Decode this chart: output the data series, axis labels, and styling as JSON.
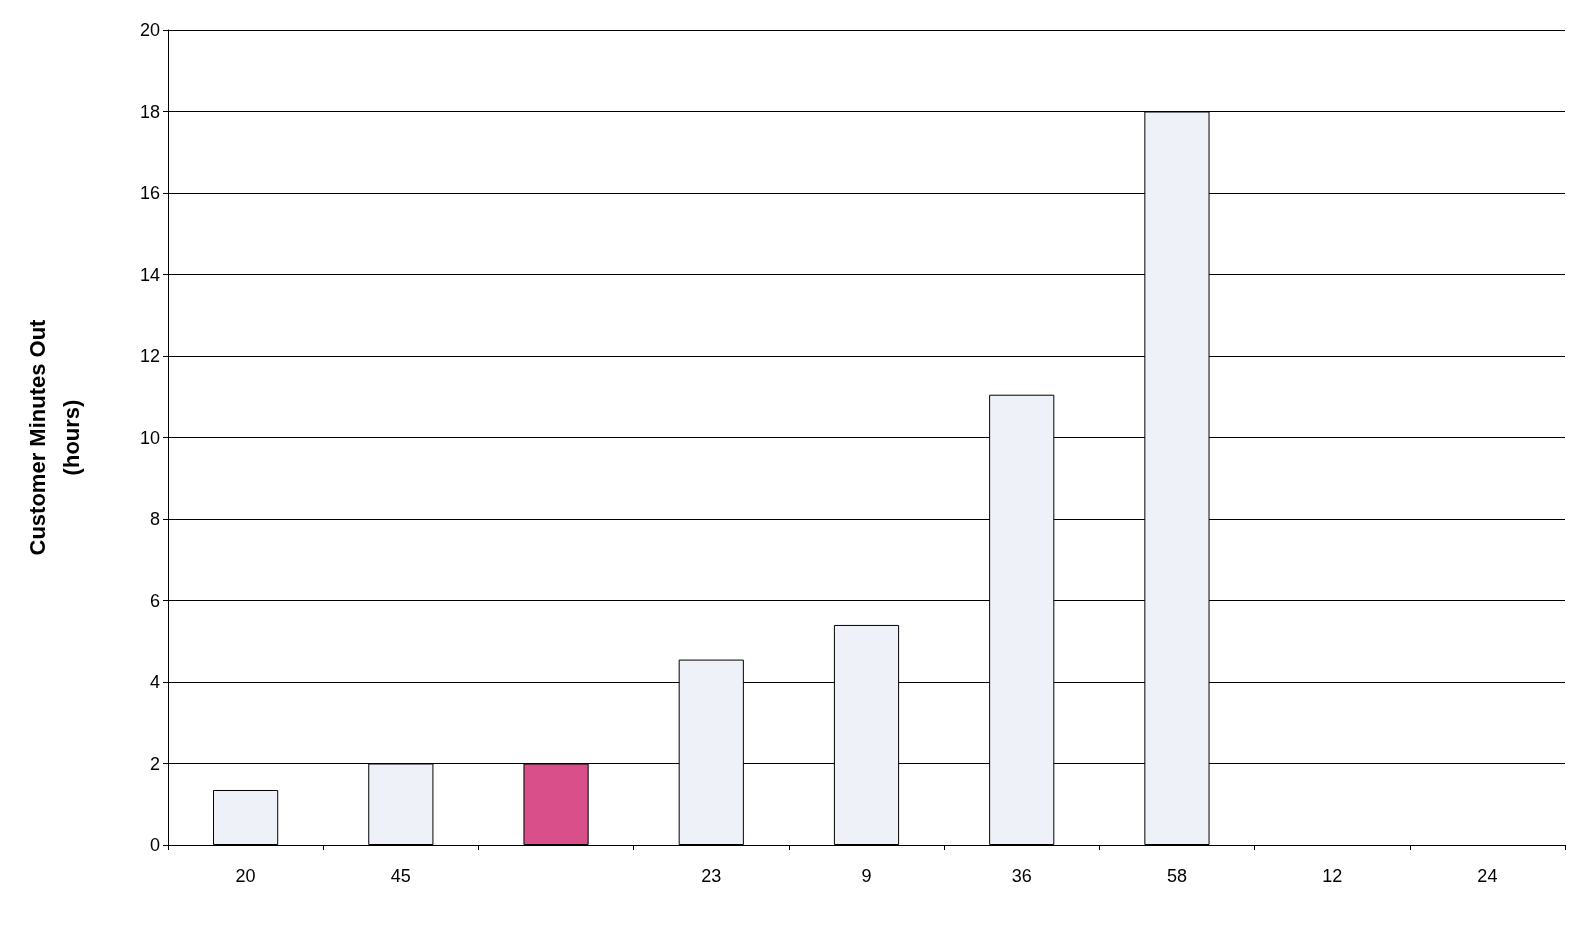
{
  "chart_data": {
    "type": "bar",
    "ylabel": "Customer Minutes Out\n(hours)",
    "categories": [
      "20",
      "45",
      null,
      "23",
      "9",
      "36",
      "58",
      "12",
      "24"
    ],
    "values": [
      1.35,
      2.0,
      2.0,
      4.55,
      5.4,
      11.05,
      18.0,
      0,
      0
    ],
    "colors": [
      "#eef2f8",
      "#eef2f8",
      "#d94f8a",
      "#eef2f8",
      "#eef2f8",
      "#eef2f8",
      "#eef2f8",
      "#eef2f8",
      "#eef2f8"
    ],
    "ylim": [
      0,
      20
    ],
    "yticks": [
      0,
      2,
      4,
      6,
      8,
      10,
      12,
      14,
      16,
      18,
      20
    ],
    "grid": "y"
  }
}
